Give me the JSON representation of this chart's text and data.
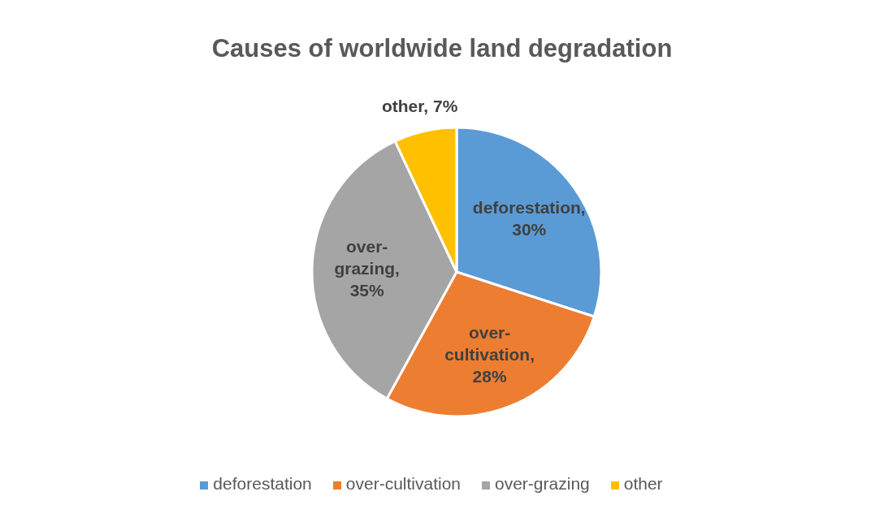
{
  "chart_data": {
    "type": "pie",
    "title": "Causes of worldwide land degradation",
    "categories": [
      "deforestation",
      "over-cultivation",
      "over-grazing",
      "other"
    ],
    "values": [
      30,
      28,
      35,
      7
    ],
    "value_labels": [
      "deforestation, 30%",
      "over-cultivation, 28%",
      "over-grazing, 35%",
      "other, 7%"
    ],
    "colors": [
      "#5b9bd5",
      "#ed7d31",
      "#a5a5a5",
      "#ffc000"
    ],
    "legend": "bottom"
  }
}
